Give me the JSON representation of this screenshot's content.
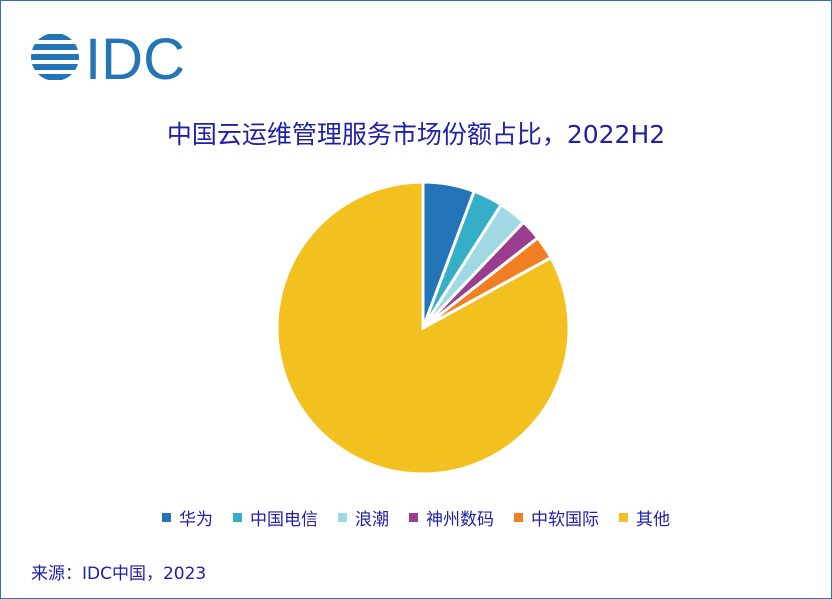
{
  "logo_text": "IDC",
  "chart_data": {
    "type": "pie",
    "title": "中国云运维管理服务市场份额占比，2022H2",
    "categories": [
      "华为",
      "中国电信",
      "浪潮",
      "神州数码",
      "中软国际",
      "其他"
    ],
    "values": [
      5.7,
      3.3,
      3.1,
      2.3,
      2.6,
      83.0
    ],
    "unit": "%",
    "colors": [
      "#2474b8",
      "#35aec8",
      "#a0d9e4",
      "#9a3d8f",
      "#f07f22",
      "#f3c11f"
    ],
    "legend_position": "bottom"
  },
  "source": "来源：IDC中国，2023"
}
